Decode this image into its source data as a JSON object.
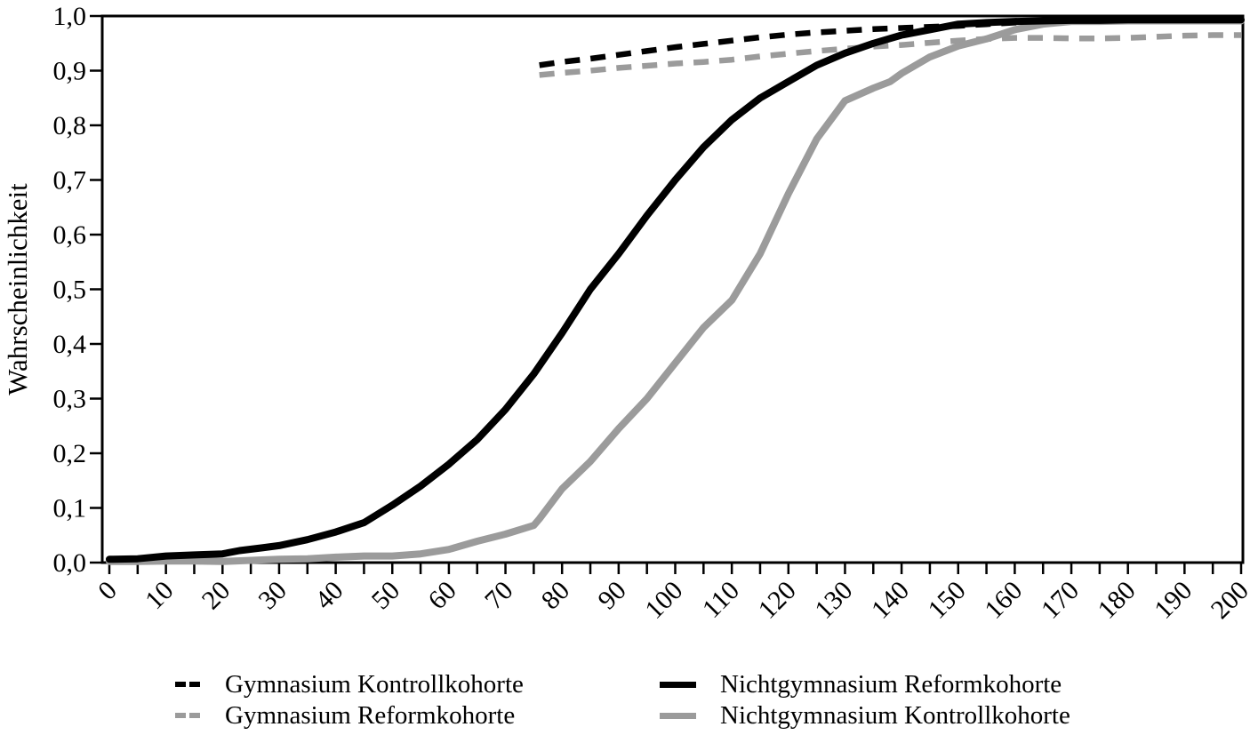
{
  "chart_data": {
    "type": "line",
    "title": "",
    "xlabel": "",
    "ylabel": "Wahrscheinlichkeit",
    "xlim": [
      0,
      200
    ],
    "ylim": [
      0.0,
      1.0
    ],
    "grid": false,
    "legend_position": "bottom",
    "x_major_tick_step": 10,
    "x_minor_tick_step": 5,
    "x_tick_labels": [
      "0",
      "10",
      "20",
      "30",
      "40",
      "50",
      "60",
      "70",
      "80",
      "90",
      "100",
      "110",
      "120",
      "130",
      "140",
      "150",
      "160",
      "170",
      "180",
      "190",
      "200"
    ],
    "y_tick_labels": [
      {
        "value": 0.0,
        "label": "0,0"
      },
      {
        "value": 0.1,
        "label": "0,1"
      },
      {
        "value": 0.2,
        "label": "0,2"
      },
      {
        "value": 0.3,
        "label": "0,3"
      },
      {
        "value": 0.4,
        "label": "0,4"
      },
      {
        "value": 0.5,
        "label": "0,5"
      },
      {
        "value": 0.6,
        "label": "0,6"
      },
      {
        "value": 0.7,
        "label": "0,7"
      },
      {
        "value": 0.8,
        "label": "0,8"
      },
      {
        "value": 0.9,
        "label": "0,9"
      },
      {
        "value": 1.0,
        "label": "1,0"
      }
    ],
    "colors": {
      "black": "#000000",
      "gray": "#9b9b9b"
    },
    "series": [
      {
        "name": "Gymnasium Kontrollkohorte",
        "style": "dashed",
        "color": "#000000",
        "points": [
          [
            76,
            0.91
          ],
          [
            80,
            0.916
          ],
          [
            85,
            0.922
          ],
          [
            90,
            0.929
          ],
          [
            95,
            0.936
          ],
          [
            100,
            0.943
          ],
          [
            105,
            0.949
          ],
          [
            110,
            0.955
          ],
          [
            115,
            0.961
          ],
          [
            120,
            0.966
          ],
          [
            125,
            0.97
          ],
          [
            130,
            0.973
          ],
          [
            135,
            0.976
          ],
          [
            140,
            0.978
          ],
          [
            145,
            0.98
          ],
          [
            150,
            0.982
          ],
          [
            155,
            0.985
          ],
          [
            160,
            0.988
          ],
          [
            165,
            0.99
          ],
          [
            170,
            0.992
          ],
          [
            175,
            0.992
          ],
          [
            180,
            0.993
          ],
          [
            185,
            0.993
          ],
          [
            190,
            0.993
          ],
          [
            195,
            0.993
          ],
          [
            200,
            0.993
          ]
        ]
      },
      {
        "name": "Gymnasium Reformkohorte",
        "style": "dashed",
        "color": "#9b9b9b",
        "points": [
          [
            76,
            0.892
          ],
          [
            80,
            0.896
          ],
          [
            85,
            0.9
          ],
          [
            90,
            0.905
          ],
          [
            95,
            0.909
          ],
          [
            100,
            0.913
          ],
          [
            105,
            0.916
          ],
          [
            110,
            0.92
          ],
          [
            115,
            0.926
          ],
          [
            120,
            0.931
          ],
          [
            125,
            0.936
          ],
          [
            130,
            0.94
          ],
          [
            135,
            0.944
          ],
          [
            140,
            0.947
          ],
          [
            145,
            0.951
          ],
          [
            150,
            0.955
          ],
          [
            155,
            0.958
          ],
          [
            160,
            0.96
          ],
          [
            165,
            0.96
          ],
          [
            170,
            0.959
          ],
          [
            175,
            0.959
          ],
          [
            180,
            0.96
          ],
          [
            185,
            0.962
          ],
          [
            190,
            0.964
          ],
          [
            195,
            0.965
          ],
          [
            200,
            0.965
          ]
        ]
      },
      {
        "name": "Nichtgymnasium Reformkohorte",
        "style": "solid",
        "color": "#000000",
        "points": [
          [
            0,
            0.006
          ],
          [
            5,
            0.007
          ],
          [
            10,
            0.012
          ],
          [
            15,
            0.014
          ],
          [
            20,
            0.016
          ],
          [
            23,
            0.022
          ],
          [
            27,
            0.027
          ],
          [
            30,
            0.031
          ],
          [
            35,
            0.042
          ],
          [
            40,
            0.056
          ],
          [
            45,
            0.073
          ],
          [
            50,
            0.105
          ],
          [
            55,
            0.14
          ],
          [
            60,
            0.18
          ],
          [
            65,
            0.225
          ],
          [
            70,
            0.28
          ],
          [
            75,
            0.345
          ],
          [
            80,
            0.42
          ],
          [
            85,
            0.5
          ],
          [
            90,
            0.565
          ],
          [
            95,
            0.635
          ],
          [
            100,
            0.7
          ],
          [
            105,
            0.76
          ],
          [
            110,
            0.81
          ],
          [
            115,
            0.85
          ],
          [
            120,
            0.88
          ],
          [
            125,
            0.91
          ],
          [
            130,
            0.932
          ],
          [
            135,
            0.95
          ],
          [
            140,
            0.965
          ],
          [
            145,
            0.975
          ],
          [
            150,
            0.985
          ],
          [
            155,
            0.988
          ],
          [
            160,
            0.99
          ],
          [
            165,
            0.991
          ],
          [
            170,
            0.992
          ],
          [
            175,
            0.992
          ],
          [
            180,
            0.993
          ],
          [
            185,
            0.993
          ],
          [
            190,
            0.993
          ],
          [
            195,
            0.993
          ],
          [
            200,
            0.993
          ]
        ]
      },
      {
        "name": "Nichtgymnasium Kontrollkohorte",
        "style": "solid",
        "color": "#9b9b9b",
        "points": [
          [
            0,
            0.002
          ],
          [
            5,
            0.002
          ],
          [
            10,
            0.003
          ],
          [
            15,
            0.003
          ],
          [
            20,
            0.002
          ],
          [
            25,
            0.004
          ],
          [
            30,
            0.006
          ],
          [
            35,
            0.007
          ],
          [
            40,
            0.01
          ],
          [
            45,
            0.012
          ],
          [
            50,
            0.012
          ],
          [
            55,
            0.016
          ],
          [
            60,
            0.024
          ],
          [
            65,
            0.039
          ],
          [
            70,
            0.052
          ],
          [
            75,
            0.068
          ],
          [
            76,
            0.08
          ],
          [
            80,
            0.135
          ],
          [
            85,
            0.185
          ],
          [
            90,
            0.245
          ],
          [
            95,
            0.3
          ],
          [
            100,
            0.365
          ],
          [
            105,
            0.43
          ],
          [
            110,
            0.48
          ],
          [
            115,
            0.565
          ],
          [
            120,
            0.675
          ],
          [
            125,
            0.775
          ],
          [
            130,
            0.845
          ],
          [
            135,
            0.868
          ],
          [
            138,
            0.88
          ],
          [
            140,
            0.895
          ],
          [
            145,
            0.925
          ],
          [
            150,
            0.945
          ],
          [
            155,
            0.958
          ],
          [
            160,
            0.975
          ],
          [
            165,
            0.985
          ],
          [
            170,
            0.99
          ],
          [
            175,
            0.99
          ],
          [
            180,
            0.991
          ],
          [
            185,
            0.991
          ],
          [
            190,
            0.991
          ],
          [
            195,
            0.991
          ],
          [
            200,
            0.991
          ]
        ]
      }
    ],
    "legend": {
      "columns": [
        {
          "items": [
            0,
            1
          ]
        },
        {
          "items": [
            2,
            3
          ]
        }
      ]
    }
  }
}
